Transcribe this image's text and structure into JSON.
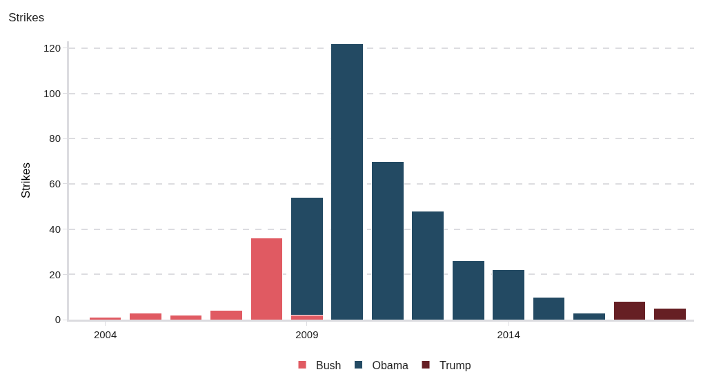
{
  "chart_data": {
    "type": "bar",
    "title": "Strikes",
    "ylabel": "Strikes",
    "stacked": true,
    "x": [
      2004,
      2005,
      2006,
      2007,
      2008,
      2009,
      2010,
      2011,
      2012,
      2013,
      2014,
      2015,
      2016,
      2017,
      2018
    ],
    "series": [
      {
        "name": "Bush",
        "color": "#e05a62",
        "values": [
          1,
          3,
          2,
          4,
          36,
          2,
          null,
          null,
          null,
          null,
          null,
          null,
          null,
          null,
          null
        ]
      },
      {
        "name": "Obama",
        "color": "#234a63",
        "values": [
          null,
          null,
          null,
          null,
          null,
          52,
          122,
          70,
          48,
          26,
          22,
          10,
          3,
          null,
          null
        ]
      },
      {
        "name": "Trump",
        "color": "#661f24",
        "values": [
          null,
          null,
          null,
          null,
          null,
          null,
          null,
          null,
          null,
          null,
          null,
          null,
          null,
          8,
          5
        ]
      }
    ],
    "xlim": [
      2003.1,
      2018.6
    ],
    "xticks": [
      2004,
      2009,
      2014
    ],
    "ylim": [
      0,
      123
    ],
    "yticks": [
      0,
      20,
      40,
      60,
      80,
      100,
      120
    ],
    "grid": "y",
    "legend": "bottom"
  }
}
